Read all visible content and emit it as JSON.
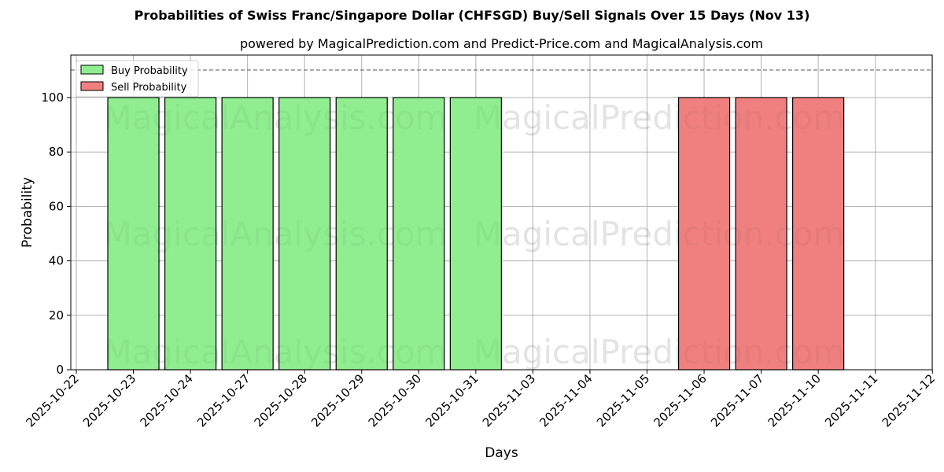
{
  "chart_data": {
    "type": "bar",
    "title": "Probabilities of Swiss Franc/Singapore Dollar (CHFSGD) Buy/Sell Signals Over 15 Days (Nov 13)",
    "subtitle": "powered by MagicalPrediction.com and Predict-Price.com and MagicalAnalysis.com",
    "xlabel": "Days",
    "ylabel": "Probability",
    "ylim": [
      0,
      115
    ],
    "yticks": [
      0,
      20,
      40,
      60,
      80,
      100
    ],
    "threshold_line": 110,
    "grid": true,
    "legend_position": "upper left",
    "categories": [
      "2025-10-22",
      "2025-10-23",
      "2025-10-24",
      "2025-10-27",
      "2025-10-28",
      "2025-10-29",
      "2025-10-30",
      "2025-10-31",
      "2025-11-03",
      "2025-11-04",
      "2025-11-05",
      "2025-11-06",
      "2025-11-07",
      "2025-11-10",
      "2025-11-11",
      "2025-11-12"
    ],
    "series": [
      {
        "name": "Buy Probability",
        "color": "#90ee90",
        "values": [
          0,
          100,
          100,
          100,
          100,
          100,
          100,
          100,
          0,
          0,
          0,
          0,
          0,
          0,
          0,
          0
        ]
      },
      {
        "name": "Sell Probability",
        "color": "#f08080",
        "values": [
          0,
          0,
          0,
          0,
          0,
          0,
          0,
          0,
          0,
          0,
          0,
          100,
          100,
          100,
          0,
          0
        ]
      }
    ],
    "watermarks": [
      "MagicalAnalysis.com",
      "MagicalPrediction.com"
    ]
  }
}
